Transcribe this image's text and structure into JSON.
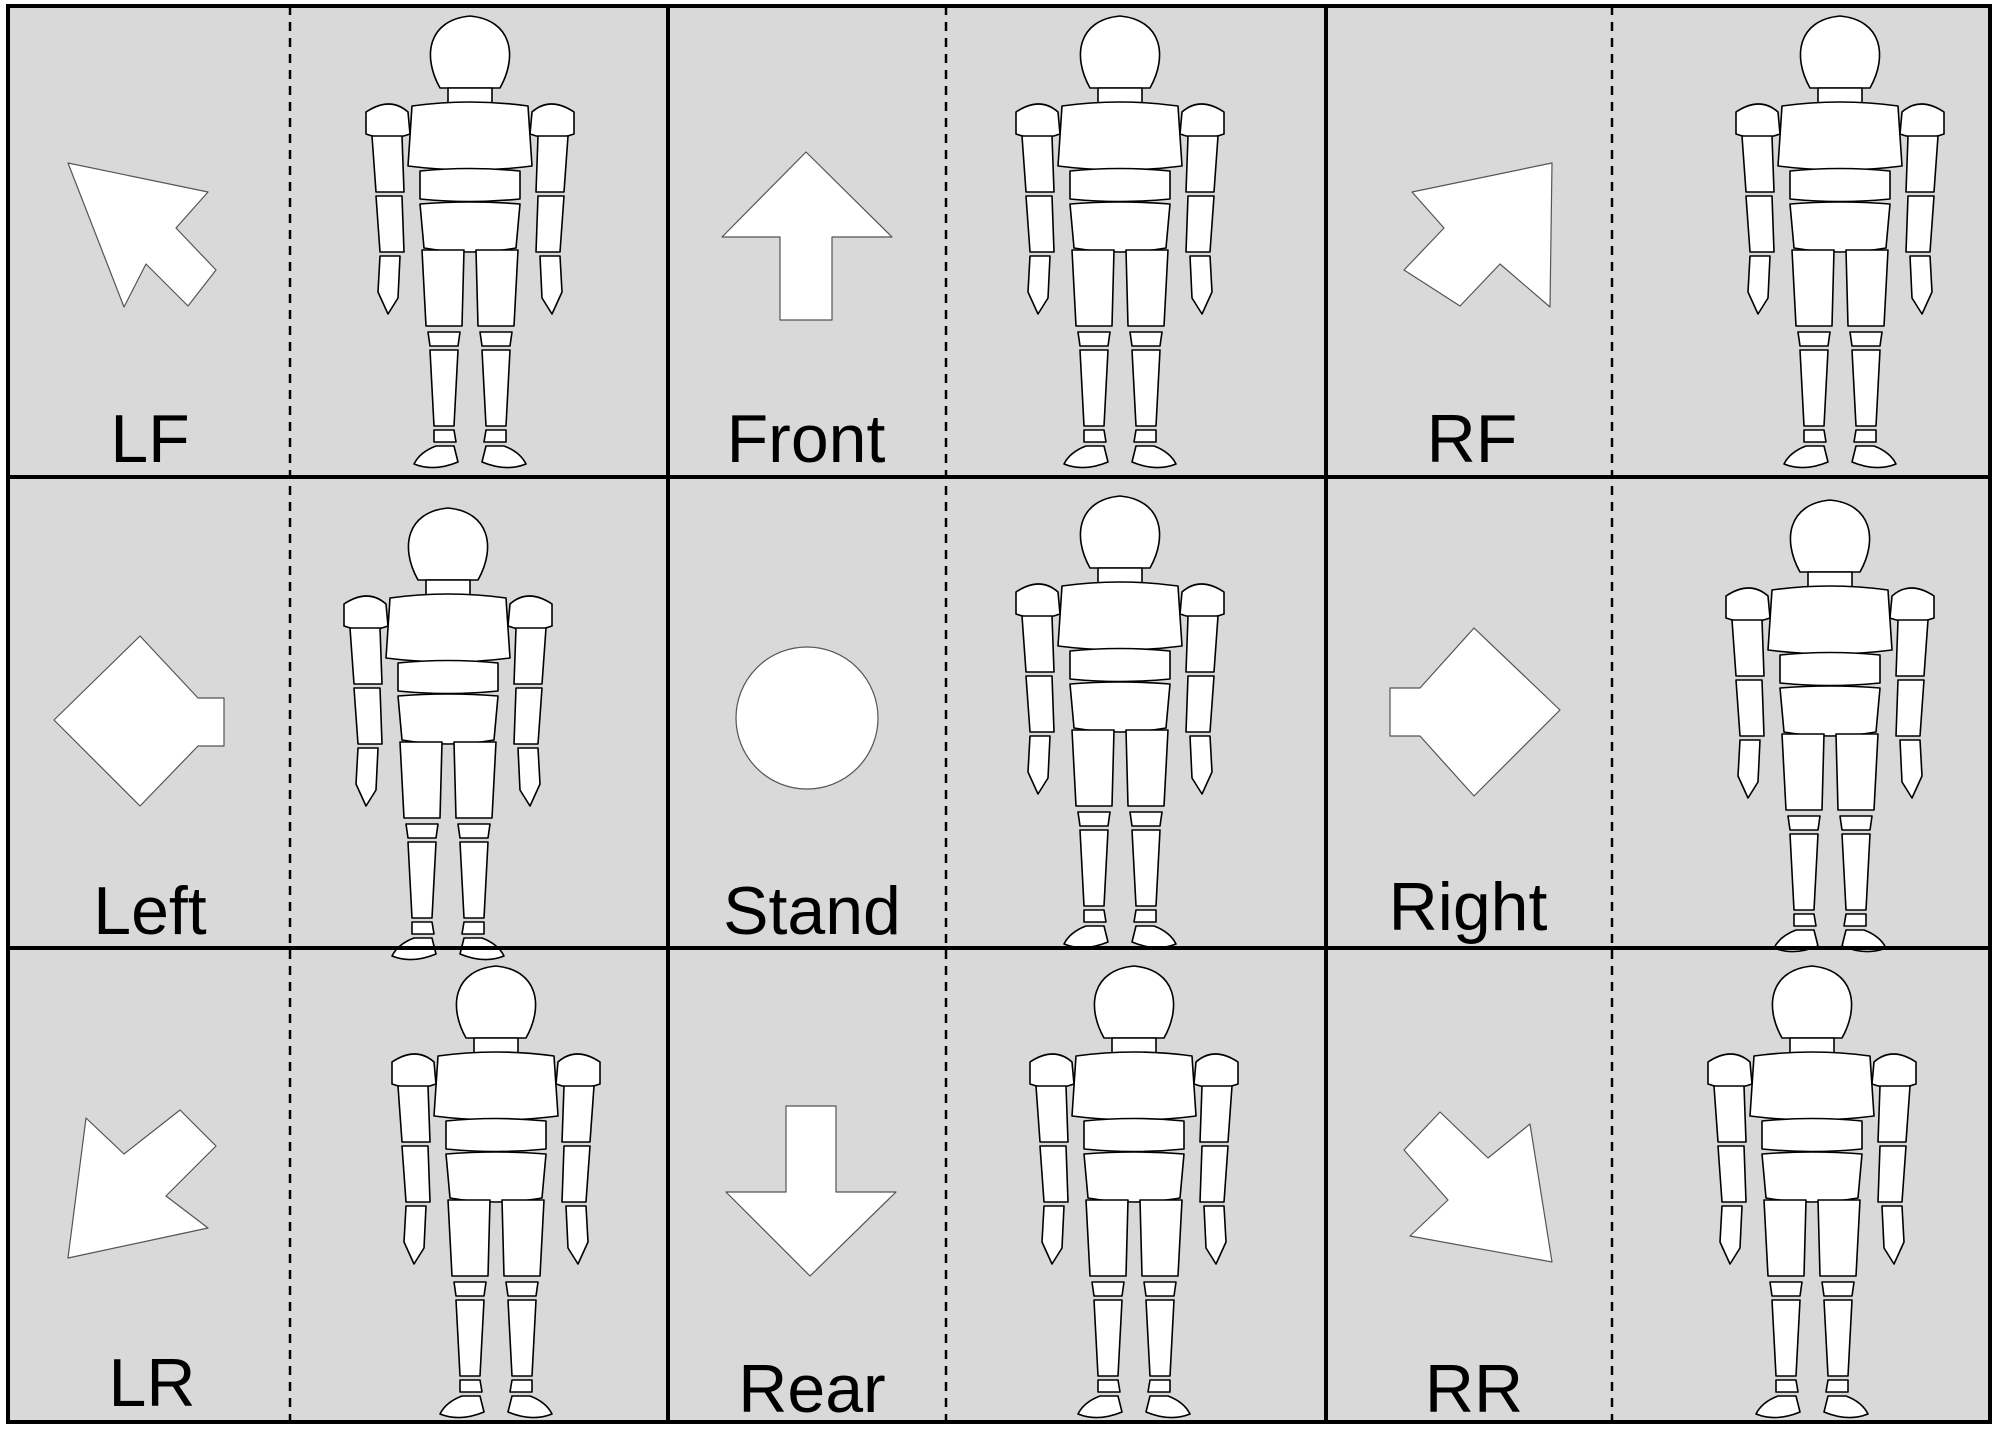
{
  "colors": {
    "panel_background": "#d9d9d9",
    "grid_line": "#000000",
    "icon_fill": "#ffffff"
  },
  "cells": [
    {
      "label": "LF",
      "icon": "arrow-up-left-icon"
    },
    {
      "label": "Front",
      "icon": "arrow-up-icon"
    },
    {
      "label": "RF",
      "icon": "arrow-up-right-icon"
    },
    {
      "label": "Left",
      "icon": "arrow-left-icon"
    },
    {
      "label": "Stand",
      "icon": "circle-icon"
    },
    {
      "label": "Right",
      "icon": "arrow-right-icon"
    },
    {
      "label": "LR",
      "icon": "arrow-down-left-icon"
    },
    {
      "label": "Rear",
      "icon": "arrow-down-icon"
    },
    {
      "label": "RR",
      "icon": "arrow-down-right-icon"
    }
  ]
}
